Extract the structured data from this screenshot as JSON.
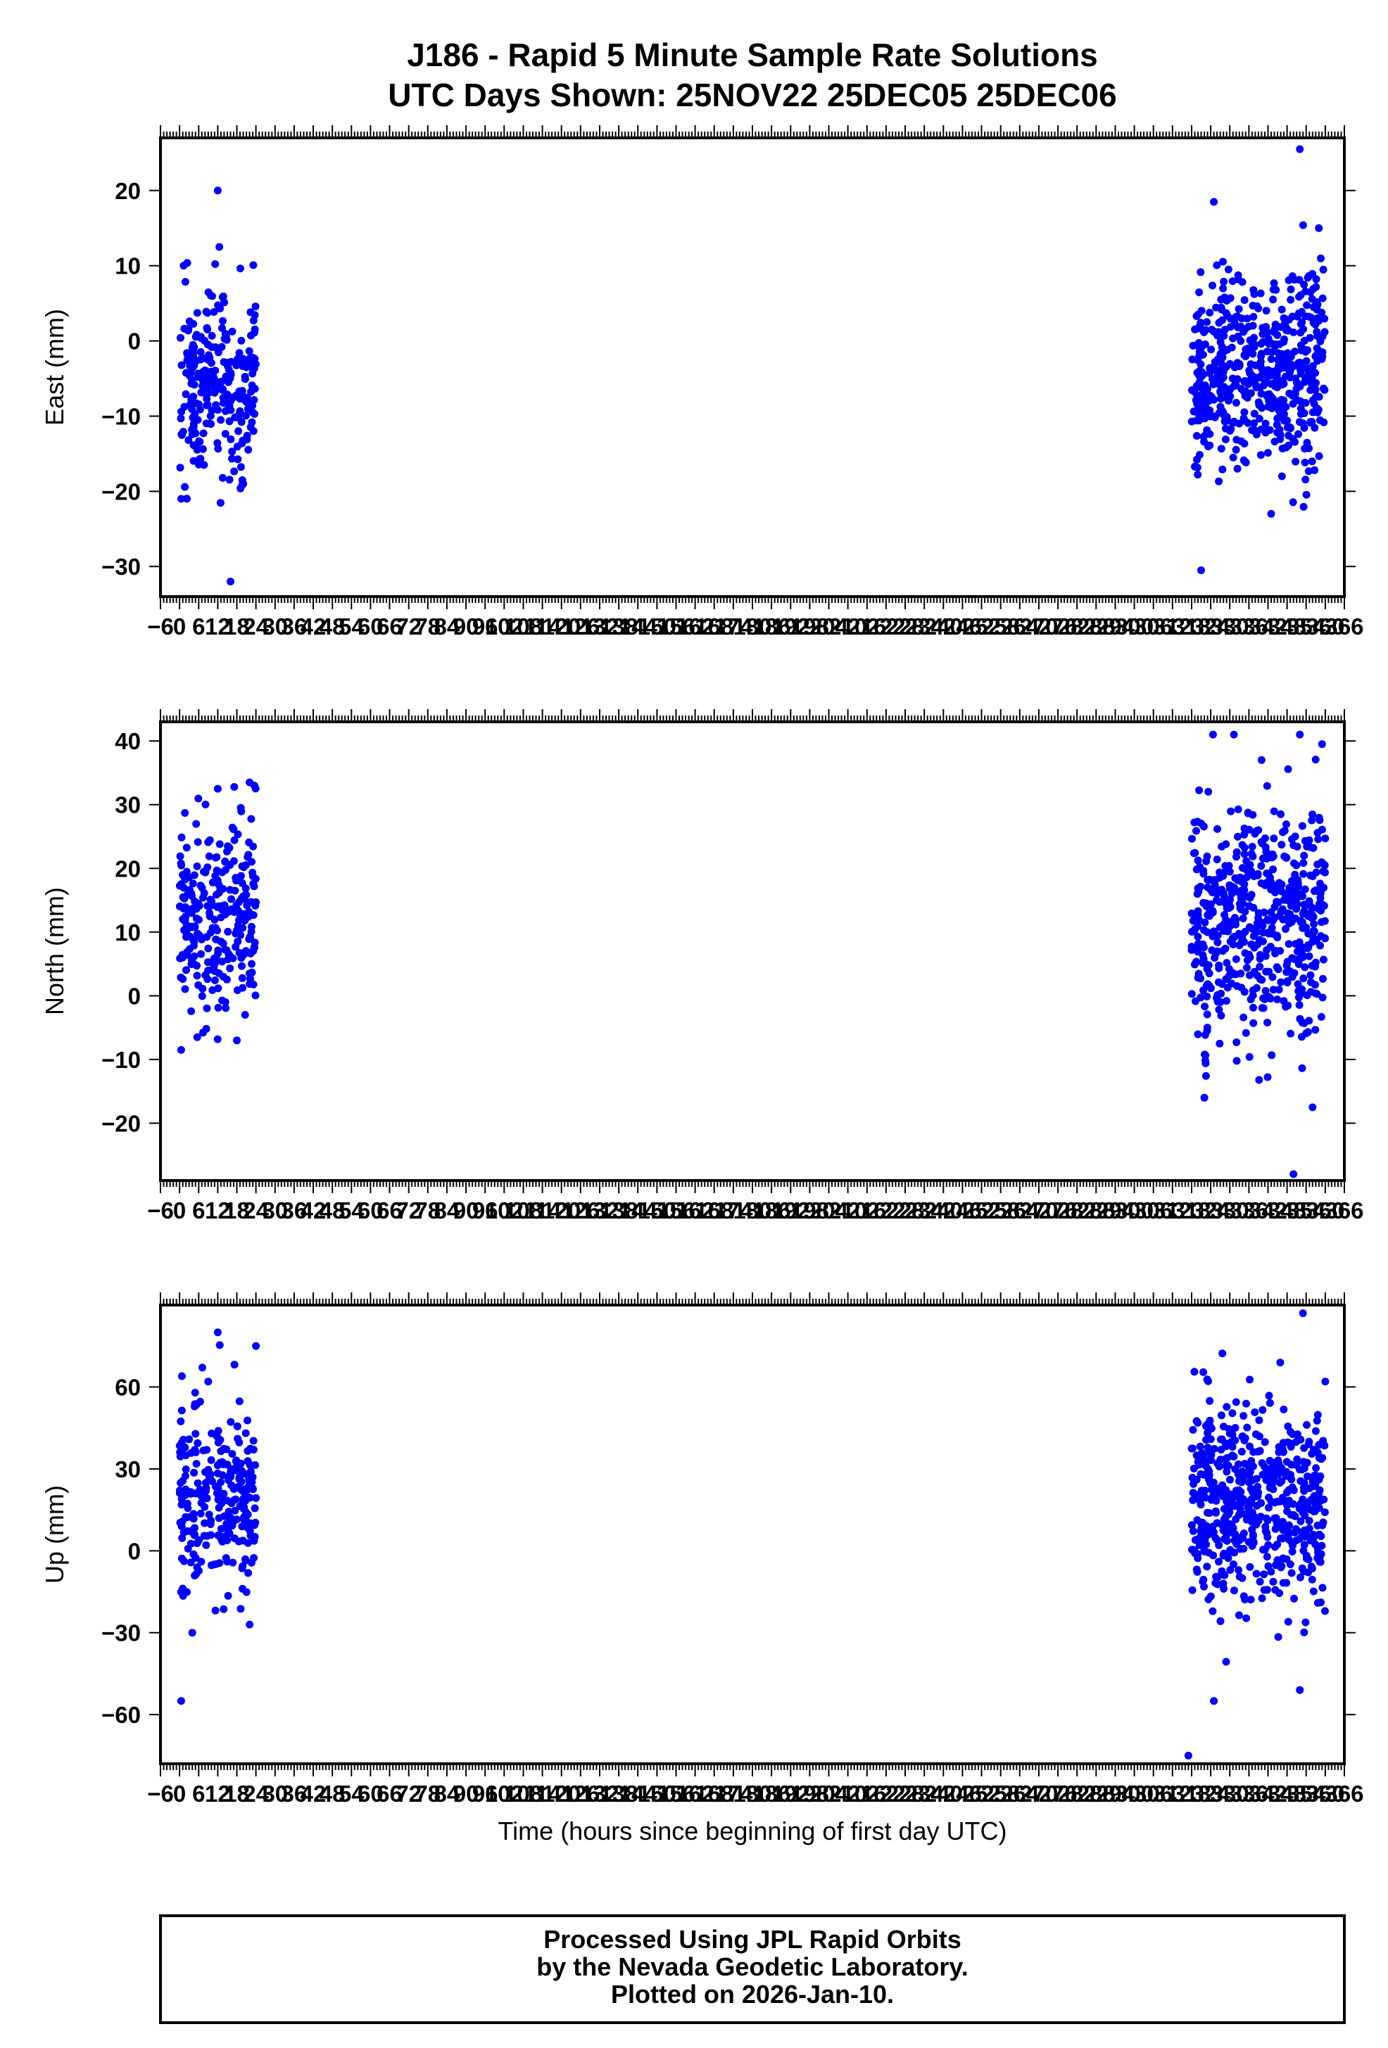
{
  "title_line1": "J186 - Rapid 5 Minute Sample Rate Solutions",
  "title_line2": "UTC Days Shown:  25NOV22 25DEC05 25DEC06",
  "x_axis_label": "Time (hours since beginning of first day UTC)",
  "footer": {
    "line1": "Processed Using JPL Rapid Orbits",
    "line2": "by the Nevada Geodetic Laboratory.",
    "line3": "Plotted on 2026-Jan-10."
  },
  "colors": {
    "points": "#0000ff",
    "frame": "#000000",
    "background": "#ffffff"
  },
  "chart_data": [
    {
      "type": "scatter",
      "ylabel": "East (mm)",
      "xlim": [
        -6,
        366
      ],
      "ylim": [
        -34,
        27
      ],
      "y_ticks": [
        20,
        10,
        0,
        -10,
        -20,
        -30
      ],
      "y_tick_labels": [
        "20",
        "10",
        "0",
        "−10",
        "−20",
        "−30"
      ],
      "x_tick_labels": [
        "−6",
        "0",
        "6",
        "12",
        "18",
        "24",
        "30",
        "36",
        "42",
        "48",
        "54",
        "60",
        "66",
        "72",
        "78",
        "84",
        "90",
        "96",
        "102",
        "108",
        "114",
        "120",
        "126",
        "132",
        "138",
        "144",
        "150",
        "156",
        "162",
        "168",
        "174",
        "180",
        "186",
        "192",
        "198",
        "204",
        "210",
        "216",
        "222",
        "228",
        "234",
        "240",
        "246",
        "252",
        "258",
        "264",
        "270",
        "276",
        "282",
        "288",
        "294",
        "300",
        "306",
        "312",
        "318",
        "324",
        "330",
        "336",
        "342",
        "348",
        "354",
        "360",
        "366"
      ],
      "clusters": [
        {
          "x_range": [
            0,
            24
          ],
          "mean": -6,
          "sd": 6,
          "count": 260,
          "outliers": [
            [
              12,
              20
            ],
            [
              12.5,
              12.5
            ],
            [
              16,
              -32
            ],
            [
              0.5,
              -21
            ],
            [
              20,
              -19
            ]
          ]
        },
        {
          "x_range": [
            318,
            360
          ],
          "mean": -4,
          "sd": 6,
          "count": 560,
          "outliers": [
            [
              352,
              25.5
            ],
            [
              325,
              18.5
            ],
            [
              321,
              -30.5
            ],
            [
              343,
              -23
            ],
            [
              358,
              15
            ]
          ]
        }
      ]
    },
    {
      "type": "scatter",
      "ylabel": "North (mm)",
      "xlim": [
        -6,
        366
      ],
      "ylim": [
        -29,
        43
      ],
      "y_ticks": [
        40,
        30,
        20,
        10,
        0,
        -10,
        -20
      ],
      "y_tick_labels": [
        "40",
        "30",
        "20",
        "10",
        "0",
        "−10",
        "−20"
      ],
      "x_tick_labels": [
        "−6",
        "0",
        "6",
        "12",
        "18",
        "24",
        "30",
        "36",
        "42",
        "48",
        "54",
        "60",
        "66",
        "72",
        "78",
        "84",
        "90",
        "96",
        "102",
        "108",
        "114",
        "120",
        "126",
        "132",
        "138",
        "144",
        "150",
        "156",
        "162",
        "168",
        "174",
        "180",
        "186",
        "192",
        "198",
        "204",
        "210",
        "216",
        "222",
        "228",
        "234",
        "240",
        "246",
        "252",
        "258",
        "264",
        "270",
        "276",
        "282",
        "288",
        "294",
        "300",
        "306",
        "312",
        "318",
        "324",
        "330",
        "336",
        "342",
        "348",
        "354",
        "360",
        "366"
      ],
      "clusters": [
        {
          "x_range": [
            0,
            24
          ],
          "mean": 12,
          "sd": 7,
          "count": 260,
          "outliers": [
            [
              0.5,
              -8.5
            ],
            [
              22,
              33.5
            ],
            [
              23.5,
              33
            ],
            [
              12,
              32.5
            ],
            [
              18,
              -7
            ]
          ]
        },
        {
          "x_range": [
            318,
            360
          ],
          "mean": 12,
          "sd": 9,
          "count": 560,
          "outliers": [
            [
              352,
              41
            ],
            [
              359,
              39.5
            ],
            [
              350,
              -28
            ],
            [
              322,
              -16
            ],
            [
              356,
              -17.5
            ],
            [
              340,
              37
            ]
          ]
        }
      ]
    },
    {
      "type": "scatter",
      "ylabel": "Up (mm)",
      "xlim": [
        -6,
        366
      ],
      "ylim": [
        -78,
        90
      ],
      "y_ticks": [
        60,
        30,
        0,
        -30,
        -60
      ],
      "y_tick_labels": [
        "60",
        "30",
        "0",
        "−30",
        "−60"
      ],
      "x_tick_labels": [
        "−6",
        "0",
        "6",
        "12",
        "18",
        "24",
        "30",
        "36",
        "42",
        "48",
        "54",
        "60",
        "66",
        "72",
        "78",
        "84",
        "90",
        "96",
        "102",
        "108",
        "114",
        "120",
        "126",
        "132",
        "138",
        "144",
        "150",
        "156",
        "162",
        "168",
        "174",
        "180",
        "186",
        "192",
        "198",
        "204",
        "210",
        "216",
        "222",
        "228",
        "234",
        "240",
        "246",
        "252",
        "258",
        "264",
        "270",
        "276",
        "282",
        "288",
        "294",
        "300",
        "306",
        "312",
        "318",
        "324",
        "330",
        "336",
        "342",
        "348",
        "354",
        "360",
        "366"
      ],
      "clusters": [
        {
          "x_range": [
            0,
            24
          ],
          "mean": 22,
          "sd": 17,
          "count": 260,
          "outliers": [
            [
              0.5,
              -55
            ],
            [
              12,
              80
            ],
            [
              24,
              75
            ],
            [
              4,
              -30
            ],
            [
              22,
              -27
            ]
          ]
        },
        {
          "x_range": [
            318,
            360
          ],
          "mean": 18,
          "sd": 18,
          "count": 560,
          "outliers": [
            [
              317,
              -75
            ],
            [
              353,
              87
            ],
            [
              352,
              -51
            ],
            [
              325,
              -55
            ],
            [
              360,
              62
            ]
          ]
        }
      ]
    }
  ]
}
